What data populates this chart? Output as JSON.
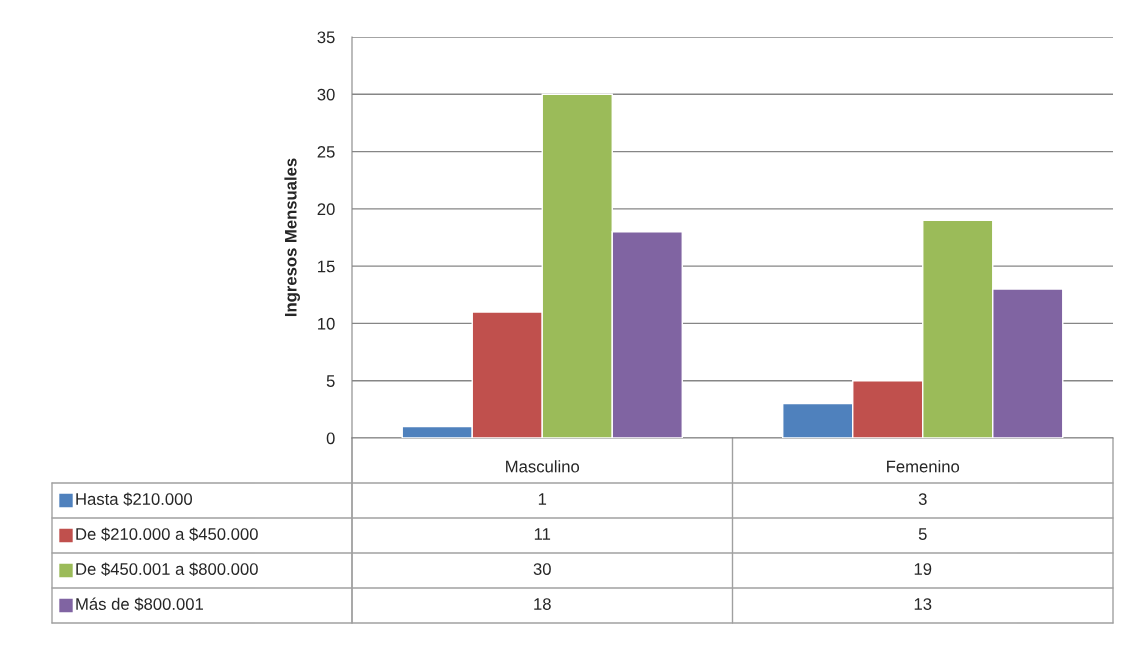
{
  "chart_data": {
    "type": "bar",
    "ylabel": "Ingresos Mensuales",
    "categories": [
      "Masculino",
      "Femenino"
    ],
    "series": [
      {
        "name": "Hasta $210.000",
        "color": "#4f81bd",
        "values": [
          1,
          3
        ]
      },
      {
        "name": "De $210.000 a $450.000",
        "color": "#c0504d",
        "values": [
          11,
          5
        ]
      },
      {
        "name": "De $450.001 a $800.000",
        "color": "#9bbb59",
        "values": [
          30,
          19
        ]
      },
      {
        "name": "Más de $800.001",
        "color": "#8064a2",
        "values": [
          18,
          13
        ]
      }
    ],
    "ylim": [
      0,
      35
    ],
    "yticks": [
      0,
      5,
      10,
      15,
      20,
      25,
      30,
      35
    ],
    "grid": "y",
    "data_labels": true,
    "legend": "bottom left"
  }
}
